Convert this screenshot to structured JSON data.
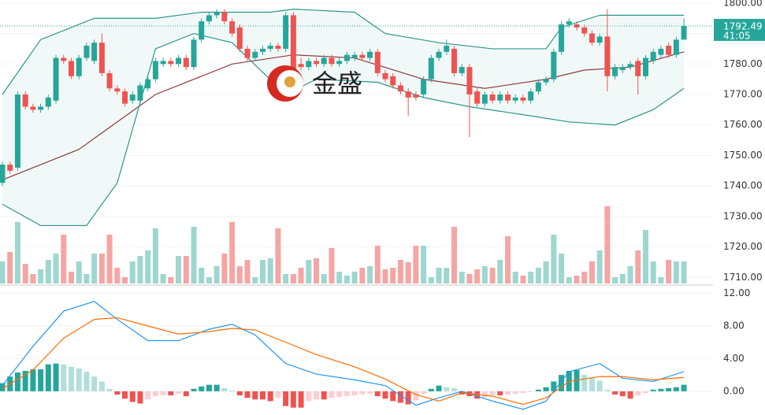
{
  "watermark": "金盛",
  "chart_data": [
    {
      "type": "candlestick",
      "open": [
        1741,
        1747,
        1746,
        1770,
        1766,
        1765,
        1766,
        1768,
        1782,
        1781,
        1776,
        1782,
        1781,
        1787,
        1777,
        1772,
        1771,
        1768,
        1768,
        1772,
        1775,
        1780,
        1781,
        1780,
        1782,
        1779,
        1788,
        1794,
        1796,
        1797,
        1794,
        1792,
        1785,
        1782,
        1784,
        1785,
        1786,
        1785,
        1796,
        1780,
        1779,
        1781,
        1780,
        1782,
        1780,
        1781,
        1782,
        1783,
        1782,
        1784,
        1777,
        1776,
        1773,
        1771,
        1770,
        1770,
        1775,
        1782,
        1784,
        1785,
        1777,
        1779,
        1771,
        1767,
        1770,
        1768,
        1770,
        1768,
        1769,
        1768,
        1771,
        1774,
        1775,
        1784,
        1793,
        1793,
        1792,
        1790,
        1787,
        1789,
        1776,
        1778,
        1779,
        1781,
        1776,
        1781,
        1783,
        1786,
        1783,
        1788
      ],
      "high": [
        1748,
        1748,
        1771,
        1771,
        1767,
        1767,
        1770,
        1783,
        1783,
        1782,
        1783,
        1787,
        1788,
        1790,
        1778,
        1773,
        1772,
        1771,
        1774,
        1776,
        1782,
        1782,
        1782,
        1783,
        1783,
        1789,
        1795,
        1797,
        1798,
        1798,
        1795,
        1793,
        1786,
        1785,
        1786,
        1787,
        1787,
        1797,
        1797,
        1782,
        1782,
        1782,
        1783,
        1783,
        1782,
        1784,
        1784,
        1784,
        1785,
        1785,
        1778,
        1777,
        1774,
        1772,
        1771,
        1776,
        1783,
        1785,
        1788,
        1786,
        1780,
        1780,
        1772,
        1771,
        1771,
        1771,
        1771,
        1770,
        1770,
        1772,
        1775,
        1776,
        1785,
        1794,
        1795,
        1794,
        1793,
        1791,
        1790,
        1798,
        1780,
        1780,
        1781,
        1782,
        1783,
        1785,
        1786,
        1787,
        1789,
        1795
      ],
      "low": [
        1740,
        1744,
        1745,
        1765,
        1764,
        1764,
        1765,
        1767,
        1780,
        1775,
        1775,
        1781,
        1780,
        1776,
        1771,
        1770,
        1766,
        1767,
        1767,
        1771,
        1774,
        1779,
        1779,
        1779,
        1778,
        1778,
        1787,
        1793,
        1795,
        1793,
        1789,
        1784,
        1781,
        1781,
        1783,
        1784,
        1784,
        1784,
        1774,
        1778,
        1778,
        1779,
        1779,
        1779,
        1779,
        1780,
        1781,
        1781,
        1781,
        1776,
        1774,
        1772,
        1770,
        1763,
        1768,
        1769,
        1774,
        1781,
        1783,
        1776,
        1776,
        1756,
        1766,
        1766,
        1767,
        1767,
        1767,
        1767,
        1767,
        1767,
        1770,
        1773,
        1774,
        1783,
        1792,
        1791,
        1789,
        1786,
        1786,
        1771,
        1775,
        1777,
        1778,
        1770,
        1775,
        1780,
        1782,
        1782,
        1782,
        1788
      ],
      "close": [
        1747,
        1745,
        1770,
        1766,
        1765,
        1766,
        1769,
        1782,
        1781,
        1776,
        1782,
        1786,
        1787,
        1777,
        1772,
        1771,
        1767,
        1770,
        1773,
        1775,
        1781,
        1781,
        1780,
        1782,
        1779,
        1788,
        1794,
        1796,
        1797,
        1794,
        1790,
        1785,
        1782,
        1784,
        1785,
        1786,
        1785,
        1796,
        1775,
        1779,
        1781,
        1780,
        1782,
        1780,
        1781,
        1783,
        1783,
        1782,
        1784,
        1777,
        1775,
        1773,
        1771,
        1769,
        1769,
        1775,
        1782,
        1784,
        1786,
        1777,
        1779,
        1770,
        1767,
        1770,
        1768,
        1770,
        1768,
        1769,
        1768,
        1771,
        1774,
        1775,
        1784,
        1793,
        1794,
        1792,
        1790,
        1787,
        1789,
        1776,
        1779,
        1779,
        1780,
        1776,
        1782,
        1784,
        1785,
        1783,
        1788,
        1792.49
      ],
      "volume": [
        28,
        40,
        78,
        25,
        12,
        18,
        30,
        38,
        62,
        15,
        28,
        12,
        38,
        38,
        62,
        20,
        8,
        28,
        35,
        42,
        70,
        12,
        8,
        35,
        35,
        72,
        20,
        8,
        22,
        38,
        78,
        22,
        30,
        8,
        30,
        32,
        70,
        12,
        12,
        20,
        30,
        32,
        12,
        45,
        15,
        10,
        15,
        20,
        22,
        48,
        18,
        20,
        30,
        27,
        48,
        48,
        8,
        20,
        20,
        72,
        15,
        12,
        18,
        22,
        20,
        30,
        60,
        15,
        10,
        15,
        20,
        28,
        62,
        38,
        8,
        10,
        15,
        28,
        42,
        98,
        8,
        12,
        22,
        42,
        68,
        28,
        8,
        30,
        28,
        28
      ],
      "volume_lim": [
        0,
        100
      ],
      "up_color": "#26a69a",
      "down_color": "#ef5350",
      "volume_up_color": "#9ed6d0",
      "volume_down_color": "#f5a5a3",
      "band_fill": "#eef7f6",
      "lines": [
        {
          "color": "#2a9688",
          "x": [
            0,
            5,
            12,
            20,
            26,
            35,
            38,
            46,
            50,
            57,
            64,
            71,
            73,
            78,
            85,
            89
          ],
          "values": [
            1770,
            1788,
            1795,
            1795,
            1797,
            1797,
            1798,
            1797,
            1790,
            1787,
            1785,
            1785,
            1792,
            1796,
            1796,
            1796
          ]
        },
        {
          "color": "#8e3b3b",
          "x": [
            0,
            10,
            20,
            30,
            38,
            46,
            55,
            63,
            71,
            76,
            82,
            89
          ],
          "values": [
            1742,
            1752,
            1770,
            1780,
            1783,
            1782,
            1775,
            1772,
            1775,
            1778,
            1779,
            1784
          ]
        },
        {
          "color": "#2a9688",
          "x": [
            0,
            5,
            11,
            15,
            20,
            25,
            30,
            37,
            41,
            49,
            55,
            61,
            69,
            74,
            80,
            85,
            89
          ],
          "values": [
            1734,
            1727,
            1727,
            1741,
            1785,
            1790,
            1787,
            1770,
            1775,
            1774,
            1769,
            1766,
            1763,
            1761,
            1760,
            1765,
            1772
          ]
        }
      ],
      "ylim": [
        1708,
        1801
      ],
      "yticks": [
        {
          "value": 1710,
          "label": "1710.00"
        },
        {
          "value": 1720,
          "label": "1720.00"
        },
        {
          "value": 1730,
          "label": "1730.00"
        },
        {
          "value": 1740,
          "label": "1740.00"
        },
        {
          "value": 1750,
          "label": "1750.00"
        },
        {
          "value": 1760,
          "label": "1760.00"
        },
        {
          "value": 1770,
          "label": "1770.00"
        },
        {
          "value": 1780,
          "label": "1780.00"
        },
        {
          "value": 1790,
          "label": "1790.00"
        },
        {
          "value": 1800,
          "label": "1800.00"
        }
      ],
      "grid": true,
      "countdown": "41:05"
    },
    {
      "type": "macd",
      "histogram": [
        1.0,
        1.8,
        2.3,
        2.5,
        2.7,
        2.7,
        3.3,
        3.4,
        3.3,
        3.0,
        2.8,
        2.4,
        1.8,
        1.2,
        0.3,
        -0.4,
        -0.9,
        -1.3,
        -1.5,
        -1.0,
        -0.6,
        -0.5,
        -0.5,
        -0.3,
        -0.6,
        0.3,
        0.6,
        0.8,
        0.8,
        0.4,
        0.1,
        -0.5,
        -0.8,
        -1.0,
        -1.0,
        -1.2,
        -0.8,
        -1.8,
        -2.0,
        -2.0,
        -1.2,
        -1.0,
        -1.0,
        -0.8,
        -0.7,
        -0.6,
        -0.5,
        -0.4,
        -0.3,
        -0.6,
        -0.9,
        -1.2,
        -1.4,
        -1.6,
        -1.1,
        -0.3,
        0.3,
        0.7,
        0.5,
        0.4,
        -0.4,
        -0.6,
        -0.9,
        -0.7,
        -0.5,
        -0.5,
        -0.4,
        -0.3,
        -0.2,
        -0.1,
        0.2,
        0.5,
        1.2,
        2.0,
        2.5,
        2.6,
        2.0,
        1.6,
        1.3,
        0.2,
        -0.4,
        -0.6,
        -0.9,
        -0.5,
        -0.2,
        0.2,
        0.3,
        0.4,
        0.5,
        0.8
      ],
      "hist_colors": {
        "up_strong": "#26a69a",
        "up_weak": "#b2dfdb",
        "down_strong": "#ef5350",
        "down_weak": "#ffcdd2"
      },
      "lines": [
        {
          "color": "#2196f3",
          "x": [
            0,
            4,
            8,
            12,
            15,
            19,
            23,
            27,
            30,
            33,
            37,
            41,
            46,
            50,
            54,
            57,
            60,
            64,
            68,
            71,
            74,
            78,
            81,
            85,
            89
          ],
          "values": [
            0.7,
            5.5,
            9.8,
            11.0,
            8.8,
            6.2,
            6.2,
            7.6,
            8.2,
            6.9,
            3.4,
            2.1,
            1.4,
            0.7,
            -1.7,
            -0.8,
            0,
            -1.2,
            -2.2,
            -1.2,
            2.4,
            3.4,
            1.6,
            1.2,
            2.4
          ]
        },
        {
          "color": "#ff6d00",
          "x": [
            0,
            4,
            8,
            12,
            15,
            19,
            23,
            27,
            30,
            33,
            37,
            41,
            46,
            50,
            54,
            57,
            60,
            64,
            68,
            71,
            74,
            78,
            81,
            85,
            89
          ],
          "values": [
            0.3,
            2.6,
            6.5,
            8.8,
            9.0,
            8.0,
            7.0,
            7.3,
            7.7,
            7.5,
            6.0,
            4.5,
            3.0,
            1.5,
            -0.4,
            -1.2,
            -0.2,
            -0.6,
            -1.6,
            -0.8,
            1.2,
            1.8,
            1.8,
            1.4,
            1.7
          ]
        }
      ],
      "ylim": [
        -2.9,
        12.9
      ],
      "yticks": [
        {
          "value": 0,
          "label": "0.00"
        },
        {
          "value": 4,
          "label": "4.00"
        },
        {
          "value": 8,
          "label": "8.00"
        },
        {
          "value": 12,
          "label": "12.00"
        }
      ],
      "grid": true
    }
  ]
}
